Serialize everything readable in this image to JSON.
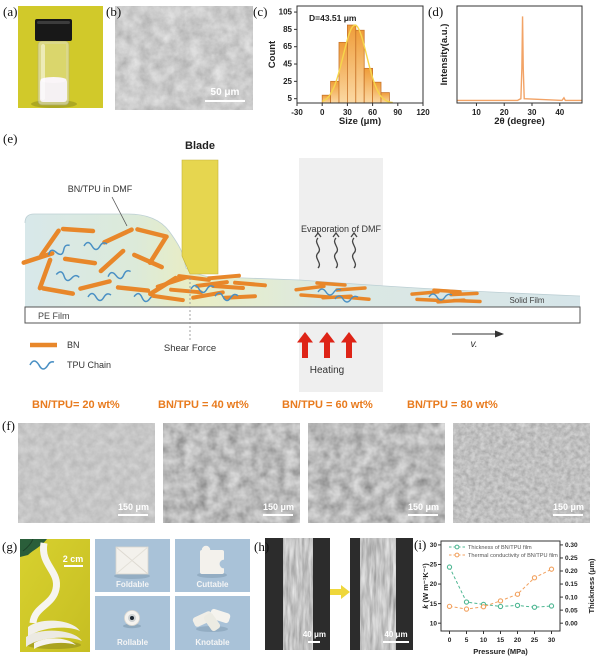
{
  "figure": {
    "panel_labels": {
      "a": "(a)",
      "b": "(b)",
      "c": "(c)",
      "d": "(d)",
      "e": "(e)",
      "f": "(f)",
      "g": "(g)",
      "h": "(h)",
      "i": "(i)"
    }
  },
  "panel_b": {
    "scale_bar": "50 μm"
  },
  "panel_e": {
    "blade": "Blade",
    "suspension": "BN/TPU in DMF",
    "evaporation": "Evaporation of DMF",
    "pe_film": "PE Film",
    "solid_film": "Solid Film",
    "shear_force": "Shear Force",
    "heating": "Heating",
    "velocity": "v.",
    "legend_bn": "BN",
    "legend_tpu": "TPU Chain"
  },
  "panel_f": {
    "titles": [
      "BN/TPU= 20 wt%",
      "BN/TPU = 40 wt%",
      "BN/TPU = 60 wt%",
      "BN/TPU = 80 wt%"
    ],
    "scale_bar": "150 μm"
  },
  "panel_g": {
    "scale_bar": "2 cm",
    "tiles": [
      "Foldable",
      "Cuttable",
      "Rollable",
      "Knotable"
    ]
  },
  "panel_h": {
    "scale_bar": "40 μm"
  },
  "colors": {
    "accent_orange": "#e87b1e",
    "bn_rod": "#e8872a",
    "tpu_blue": "#4a90c4",
    "blade_yellow": "#e6d64f",
    "heating_red": "#de2417",
    "series_green": "#4fb793",
    "series_orange": "#f2a260",
    "hist_bar": "#f0a445",
    "xrd_line": "#f2a366"
  },
  "chart_data": [
    {
      "panel": "c",
      "type": "bar",
      "title": "D=43.51 μm",
      "xlabel": "Size (μm)",
      "ylabel": "Count",
      "bin_edges": [
        0,
        10,
        20,
        30,
        40,
        50,
        60,
        70,
        80
      ],
      "values": [
        9,
        25,
        70,
        90,
        84,
        40,
        24,
        12
      ],
      "xlim": [
        -30,
        120
      ],
      "ylim": [
        0,
        112
      ],
      "xticks": [
        -30,
        0,
        30,
        60,
        90,
        120
      ],
      "yticks": [
        5,
        25,
        45,
        65,
        85,
        105
      ],
      "fit": {
        "type": "gaussian",
        "mean": 39,
        "sd": 14,
        "amplitude": 90
      }
    },
    {
      "panel": "d",
      "type": "line",
      "xlabel": "2θ (degree)",
      "ylabel": "Intensity(a.u.)",
      "xlim": [
        3,
        48
      ],
      "ylim": [
        0,
        112
      ],
      "xticks": [
        10,
        20,
        30,
        40
      ],
      "points": [
        [
          3,
          3
        ],
        [
          24.8,
          3
        ],
        [
          26,
          5
        ],
        [
          26.35,
          40
        ],
        [
          26.6,
          100
        ],
        [
          26.85,
          40
        ],
        [
          27.2,
          5
        ],
        [
          40.8,
          3
        ],
        [
          41.5,
          6
        ],
        [
          42,
          3
        ],
        [
          48,
          3
        ]
      ]
    },
    {
      "panel": "i",
      "type": "line",
      "xlabel": "Pressure (MPa)",
      "ylabel_left": "k (W m⁻¹K⁻¹)",
      "ylabel_right": "Thickness (μm)",
      "x": [
        0,
        5,
        10,
        15,
        20,
        25,
        30
      ],
      "xticks": [
        0,
        5,
        10,
        15,
        20,
        25,
        30
      ],
      "xlim": [
        -2.5,
        32.5
      ],
      "ylim_left": [
        8,
        31
      ],
      "ylim_right": [
        -0.03,
        0.315
      ],
      "yticks_left": [
        10,
        15,
        20,
        25,
        30
      ],
      "yticks_right": [
        0.0,
        0.05,
        0.1,
        0.15,
        0.2,
        0.25,
        0.3
      ],
      "legend_position": "top-left",
      "series": [
        {
          "name": "Thickness of BN/TPU film",
          "axis": "right",
          "color": "#4fb793",
          "values": [
            0.215,
            0.081,
            0.072,
            0.064,
            0.068,
            0.061,
            0.066
          ]
        },
        {
          "name": "Thermal conductivity of BN/TPU film",
          "axis": "left",
          "color": "#f2a260",
          "values": [
            14.3,
            13.6,
            14.2,
            15.7,
            17.4,
            21.6,
            23.8
          ]
        }
      ]
    }
  ]
}
